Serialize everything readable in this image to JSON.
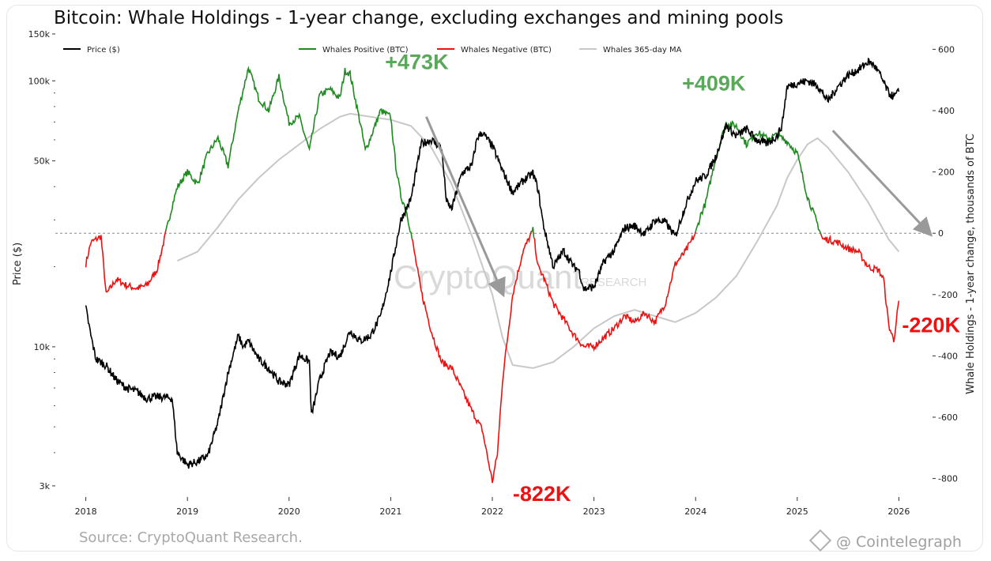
{
  "title": "Bitcoin: Whale Holdings - 1-year change, excluding exchanges and mining pools",
  "source": "Source: CryptoQuant Research.",
  "credit": "@ Cointelegraph",
  "watermark": {
    "main": "CryptoQuant",
    "sub": "RESEARCH"
  },
  "colors": {
    "price": "#000000",
    "positive": "#1f8a1f",
    "negative": "#ee1111",
    "ma": "#c8c8c8",
    "pos_label": "#5aa95a",
    "neg_label": "#ee1111",
    "arrow": "#9a9a9a"
  },
  "chart_data": {
    "type": "line",
    "title": "Bitcoin: Whale Holdings - 1-year change, excluding exchanges and mining pools",
    "ylabel_left": "Price ($)",
    "ylabel_right": "Whale Holdings - 1-year change, thousands of BTC",
    "left_scale": "log",
    "left_ylim": [
      2800,
      150000
    ],
    "left_ticks": [
      {
        "v": 3000,
        "label": "3k"
      },
      {
        "v": 10000,
        "label": "10k"
      },
      {
        "v": 50000,
        "label": "50k"
      },
      {
        "v": 100000,
        "label": "100k"
      },
      {
        "v": 150000,
        "label": "150k"
      }
    ],
    "right_ylim": [
      -850,
      650
    ],
    "right_ticks": [
      {
        "v": 600,
        "label": "600"
      },
      {
        "v": 400,
        "label": "400"
      },
      {
        "v": 200,
        "label": "200"
      },
      {
        "v": 0,
        "label": "0"
      },
      {
        "v": -200,
        "label": "-200"
      },
      {
        "v": -400,
        "label": "-400"
      },
      {
        "v": -600,
        "label": "-600"
      },
      {
        "v": -800,
        "label": "-800"
      }
    ],
    "xlim": [
      2017.7,
      2026.3
    ],
    "x_ticks": [
      "2018",
      "2019",
      "2020",
      "2021",
      "2022",
      "2023",
      "2024",
      "2025",
      "2026"
    ],
    "legend": [
      "Price ($)",
      "Whales Positive (BTC)",
      "Whales Negative (BTC)",
      "Whales 365-day MA"
    ],
    "legend_position": "top",
    "zero_line": true,
    "series": [
      {
        "name": "Price ($)",
        "axis": "left",
        "x": [
          2018.0,
          2018.05,
          2018.1,
          2018.2,
          2018.3,
          2018.4,
          2018.5,
          2018.6,
          2018.7,
          2018.85,
          2018.9,
          2019.0,
          2019.1,
          2019.2,
          2019.3,
          2019.4,
          2019.5,
          2019.55,
          2019.6,
          2019.7,
          2019.8,
          2019.9,
          2020.0,
          2020.1,
          2020.2,
          2020.22,
          2020.3,
          2020.4,
          2020.5,
          2020.6,
          2020.7,
          2020.8,
          2020.9,
          2021.0,
          2021.1,
          2021.2,
          2021.3,
          2021.4,
          2021.5,
          2021.55,
          2021.6,
          2021.7,
          2021.8,
          2021.85,
          2021.9,
          2022.0,
          2022.1,
          2022.2,
          2022.3,
          2022.4,
          2022.45,
          2022.5,
          2022.6,
          2022.7,
          2022.8,
          2022.85,
          2022.9,
          2023.0,
          2023.1,
          2023.2,
          2023.3,
          2023.4,
          2023.5,
          2023.6,
          2023.7,
          2023.8,
          2023.9,
          2024.0,
          2024.1,
          2024.2,
          2024.3,
          2024.4,
          2024.5,
          2024.6,
          2024.7,
          2024.8,
          2024.85,
          2024.9,
          2025.0,
          2025.1,
          2025.2,
          2025.3,
          2025.4,
          2025.5,
          2025.6,
          2025.7,
          2025.75,
          2025.8,
          2025.9,
          2025.95,
          2026.0
        ],
        "values": [
          14000,
          11000,
          9000,
          8500,
          7500,
          7000,
          6800,
          6400,
          6500,
          6400,
          4000,
          3600,
          3700,
          3900,
          5200,
          8000,
          11000,
          10000,
          10500,
          9000,
          8300,
          7400,
          7200,
          9300,
          8800,
          5500,
          7500,
          9500,
          9200,
          11500,
          10500,
          11000,
          13000,
          19000,
          30000,
          36000,
          58000,
          60000,
          56000,
          35000,
          33000,
          45000,
          48000,
          61000,
          64000,
          57000,
          46000,
          38000,
          42000,
          45000,
          39000,
          29000,
          20000,
          23000,
          20000,
          19500,
          16500,
          16800,
          21000,
          23000,
          28000,
          28500,
          26500,
          30000,
          29500,
          26000,
          34000,
          42000,
          44000,
          52000,
          68000,
          62000,
          66000,
          60000,
          58000,
          62000,
          68000,
          95000,
          98000,
          100000,
          96000,
          84000,
          95000,
          105000,
          110000,
          118000,
          115000,
          108000,
          90000,
          87000,
          91000
        ]
      },
      {
        "name": "Whale Holdings 1y change",
        "axis": "right",
        "note": "green when positive, red when negative",
        "x": [
          2018.0,
          2018.05,
          2018.1,
          2018.15,
          2018.2,
          2018.3,
          2018.4,
          2018.5,
          2018.6,
          2018.7,
          2018.78,
          2018.85,
          2018.9,
          2019.0,
          2019.1,
          2019.2,
          2019.3,
          2019.4,
          2019.5,
          2019.6,
          2019.7,
          2019.8,
          2019.9,
          2020.0,
          2020.1,
          2020.2,
          2020.3,
          2020.4,
          2020.5,
          2020.55,
          2020.6,
          2020.7,
          2020.75,
          2020.8,
          2020.9,
          2021.0,
          2021.05,
          2021.1,
          2021.15,
          2021.2,
          2021.3,
          2021.4,
          2021.5,
          2021.6,
          2021.7,
          2021.8,
          2021.9,
          2022.0,
          2022.05,
          2022.1,
          2022.2,
          2022.3,
          2022.4,
          2022.45,
          2022.5,
          2022.6,
          2022.7,
          2022.8,
          2022.9,
          2023.0,
          2023.1,
          2023.2,
          2023.3,
          2023.4,
          2023.5,
          2023.6,
          2023.7,
          2023.8,
          2023.9,
          2024.0,
          2024.05,
          2024.1,
          2024.2,
          2024.3,
          2024.4,
          2024.5,
          2024.6,
          2024.7,
          2024.8,
          2024.9,
          2025.0,
          2025.1,
          2025.2,
          2025.25,
          2025.3,
          2025.4,
          2025.5,
          2025.6,
          2025.7,
          2025.8,
          2025.85,
          2025.9,
          2025.95,
          2026.0
        ],
        "values": [
          -100,
          -30,
          -20,
          -10,
          -200,
          -150,
          -170,
          -180,
          -170,
          -120,
          -10,
          90,
          150,
          200,
          160,
          260,
          310,
          220,
          400,
          540,
          440,
          400,
          510,
          360,
          380,
          270,
          450,
          470,
          440,
          530,
          520,
          360,
          270,
          310,
          400,
          380,
          220,
          120,
          80,
          0,
          -190,
          -320,
          -420,
          -440,
          -510,
          -580,
          -640,
          -810,
          -720,
          -480,
          -200,
          -60,
          10,
          -110,
          -140,
          -230,
          -280,
          -330,
          -370,
          -370,
          -340,
          -310,
          -270,
          -290,
          -260,
          -290,
          -230,
          -100,
          -60,
          0,
          60,
          100,
          250,
          360,
          350,
          290,
          330,
          310,
          320,
          300,
          260,
          120,
          30,
          -20,
          -20,
          -30,
          -50,
          -60,
          -110,
          -120,
          -150,
          -300,
          -350,
          -220
        ]
      },
      {
        "name": "Whales 365-day MA",
        "axis": "right",
        "x": [
          2018.9,
          2019.1,
          2019.3,
          2019.5,
          2019.7,
          2019.9,
          2020.1,
          2020.3,
          2020.5,
          2020.6,
          2020.8,
          2021.0,
          2021.2,
          2021.4,
          2021.6,
          2021.8,
          2022.0,
          2022.1,
          2022.2,
          2022.4,
          2022.6,
          2022.8,
          2023.0,
          2023.2,
          2023.4,
          2023.6,
          2023.8,
          2024.0,
          2024.2,
          2024.4,
          2024.6,
          2024.8,
          2024.9,
          2025.0,
          2025.1,
          2025.2,
          2025.3,
          2025.5,
          2025.7,
          2025.9,
          2026.0
        ],
        "values": [
          -90,
          -60,
          20,
          110,
          180,
          240,
          290,
          340,
          380,
          390,
          380,
          370,
          350,
          280,
          160,
          -10,
          -200,
          -340,
          -430,
          -440,
          -420,
          -370,
          -310,
          -270,
          -250,
          -270,
          -290,
          -260,
          -210,
          -140,
          -30,
          90,
          180,
          240,
          290,
          310,
          280,
          200,
          100,
          -20,
          -60
        ]
      }
    ],
    "annotations": [
      {
        "text": "+473K",
        "x": 2021.1,
        "y": 473,
        "color": "positive"
      },
      {
        "text": "-822K",
        "x": 2022.17,
        "y": -822,
        "color": "negative"
      },
      {
        "text": "+409K",
        "x": 2024.1,
        "y": 409,
        "color": "positive"
      },
      {
        "text": "-220K",
        "x": 2026.0,
        "y": -220,
        "color": "negative"
      }
    ],
    "arrows": [
      {
        "from": [
          2021.35,
          380
        ],
        "to": [
          2022.1,
          -195
        ]
      },
      {
        "from": [
          2025.35,
          335
        ],
        "to": [
          2026.3,
          0
        ]
      }
    ]
  }
}
